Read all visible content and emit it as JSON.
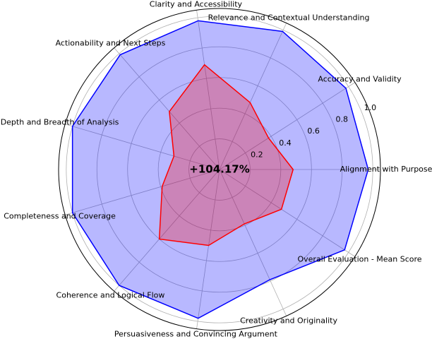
{
  "chart_data": {
    "type": "radar",
    "categories": [
      "Alignment with Purpose",
      "Accuracy and Validity",
      "Relevance and Contextual Understanding",
      "Clarity and Accessibility",
      "Actionability and Next Steps",
      "Depth and Breadth of Analysis",
      "Completeness and Coverage",
      "Coherence and Logical Flow",
      "Persuasiveness and Convincing Argument",
      "Creativity and Originality",
      "Overall Evaluation - Mean Score"
    ],
    "series": [
      {
        "color": "#0000ff",
        "values": [
          0.97,
          0.98,
          0.99,
          0.98,
          0.99,
          1.0,
          1.0,
          1.0,
          0.98,
          0.79,
          0.97
        ]
      },
      {
        "color": "#ff0000",
        "values": [
          0.48,
          0.38,
          0.48,
          0.69,
          0.5,
          0.31,
          0.39,
          0.6,
          0.5,
          0.39,
          0.48
        ]
      }
    ],
    "ylim": [
      0,
      1.05
    ],
    "yticks": [
      0.2,
      0.4,
      0.6,
      0.8,
      {
        "value": 1,
        "label": "1.0"
      }
    ],
    "center_annotation": "+104.17%",
    "grid": true
  }
}
